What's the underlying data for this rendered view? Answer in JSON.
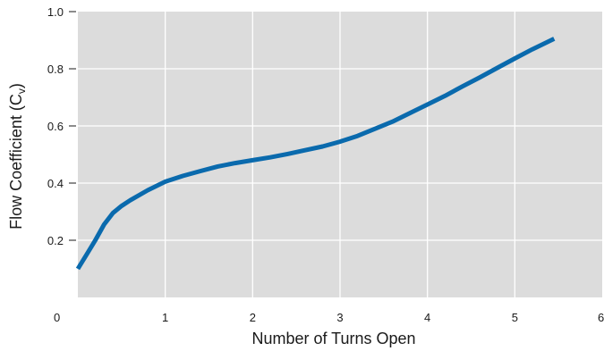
{
  "chart_data": {
    "type": "line",
    "xlabel": "Number of Turns Open",
    "ylabel_main": "Flow Coefficient (C",
    "ylabel_sub": "v",
    "ylabel_close": ")",
    "xlim": [
      0,
      6
    ],
    "ylim": [
      0,
      1.0
    ],
    "x_ticks": [
      0,
      1,
      2,
      3,
      4,
      5,
      6
    ],
    "y_ticks": [
      0.2,
      0.4,
      0.6,
      0.8,
      1.0
    ],
    "x_tick_labels": [
      "0",
      "1",
      "2",
      "3",
      "4",
      "5",
      "6"
    ],
    "y_tick_labels": [
      "0.2",
      "0.4",
      "0.6",
      "0.8",
      "1.0"
    ],
    "grid": true,
    "colors": {
      "plot_background": "#dcdcdc",
      "grid": "#ffffff",
      "line": "#0a6aad"
    },
    "series": [
      {
        "x": [
          0,
          0.1,
          0.2,
          0.3,
          0.4,
          0.5,
          0.6,
          0.8,
          1.0,
          1.2,
          1.4,
          1.6,
          1.8,
          2.0,
          2.2,
          2.4,
          2.6,
          2.8,
          3.0,
          3.2,
          3.4,
          3.6,
          3.8,
          4.0,
          4.2,
          4.4,
          4.6,
          4.8,
          5.0,
          5.2,
          5.45
        ],
        "y": [
          0.1,
          0.15,
          0.2,
          0.255,
          0.295,
          0.32,
          0.34,
          0.375,
          0.405,
          0.425,
          0.442,
          0.458,
          0.47,
          0.48,
          0.49,
          0.502,
          0.515,
          0.528,
          0.545,
          0.565,
          0.59,
          0.615,
          0.645,
          0.675,
          0.705,
          0.738,
          0.77,
          0.803,
          0.836,
          0.868,
          0.905
        ]
      }
    ]
  }
}
